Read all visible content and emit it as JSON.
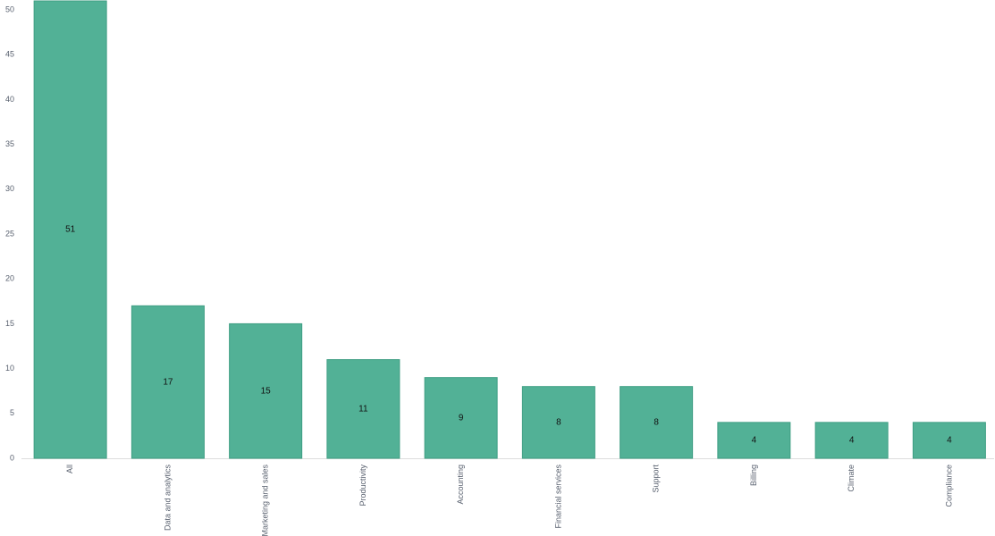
{
  "chart_data": {
    "type": "bar",
    "categories": [
      "All",
      "Data and analytics",
      "Marketing and sales",
      "Productivity",
      "Accounting",
      "Financial services",
      "Support",
      "Billing",
      "Climate",
      "Compliance"
    ],
    "values": [
      51,
      17,
      15,
      11,
      9,
      8,
      8,
      4,
      4,
      4
    ],
    "color": "#52b196",
    "ylim": [
      0,
      51
    ],
    "yticks": [
      0,
      5,
      10,
      15,
      20,
      25,
      30,
      35,
      40,
      45,
      50
    ],
    "grid": false
  }
}
